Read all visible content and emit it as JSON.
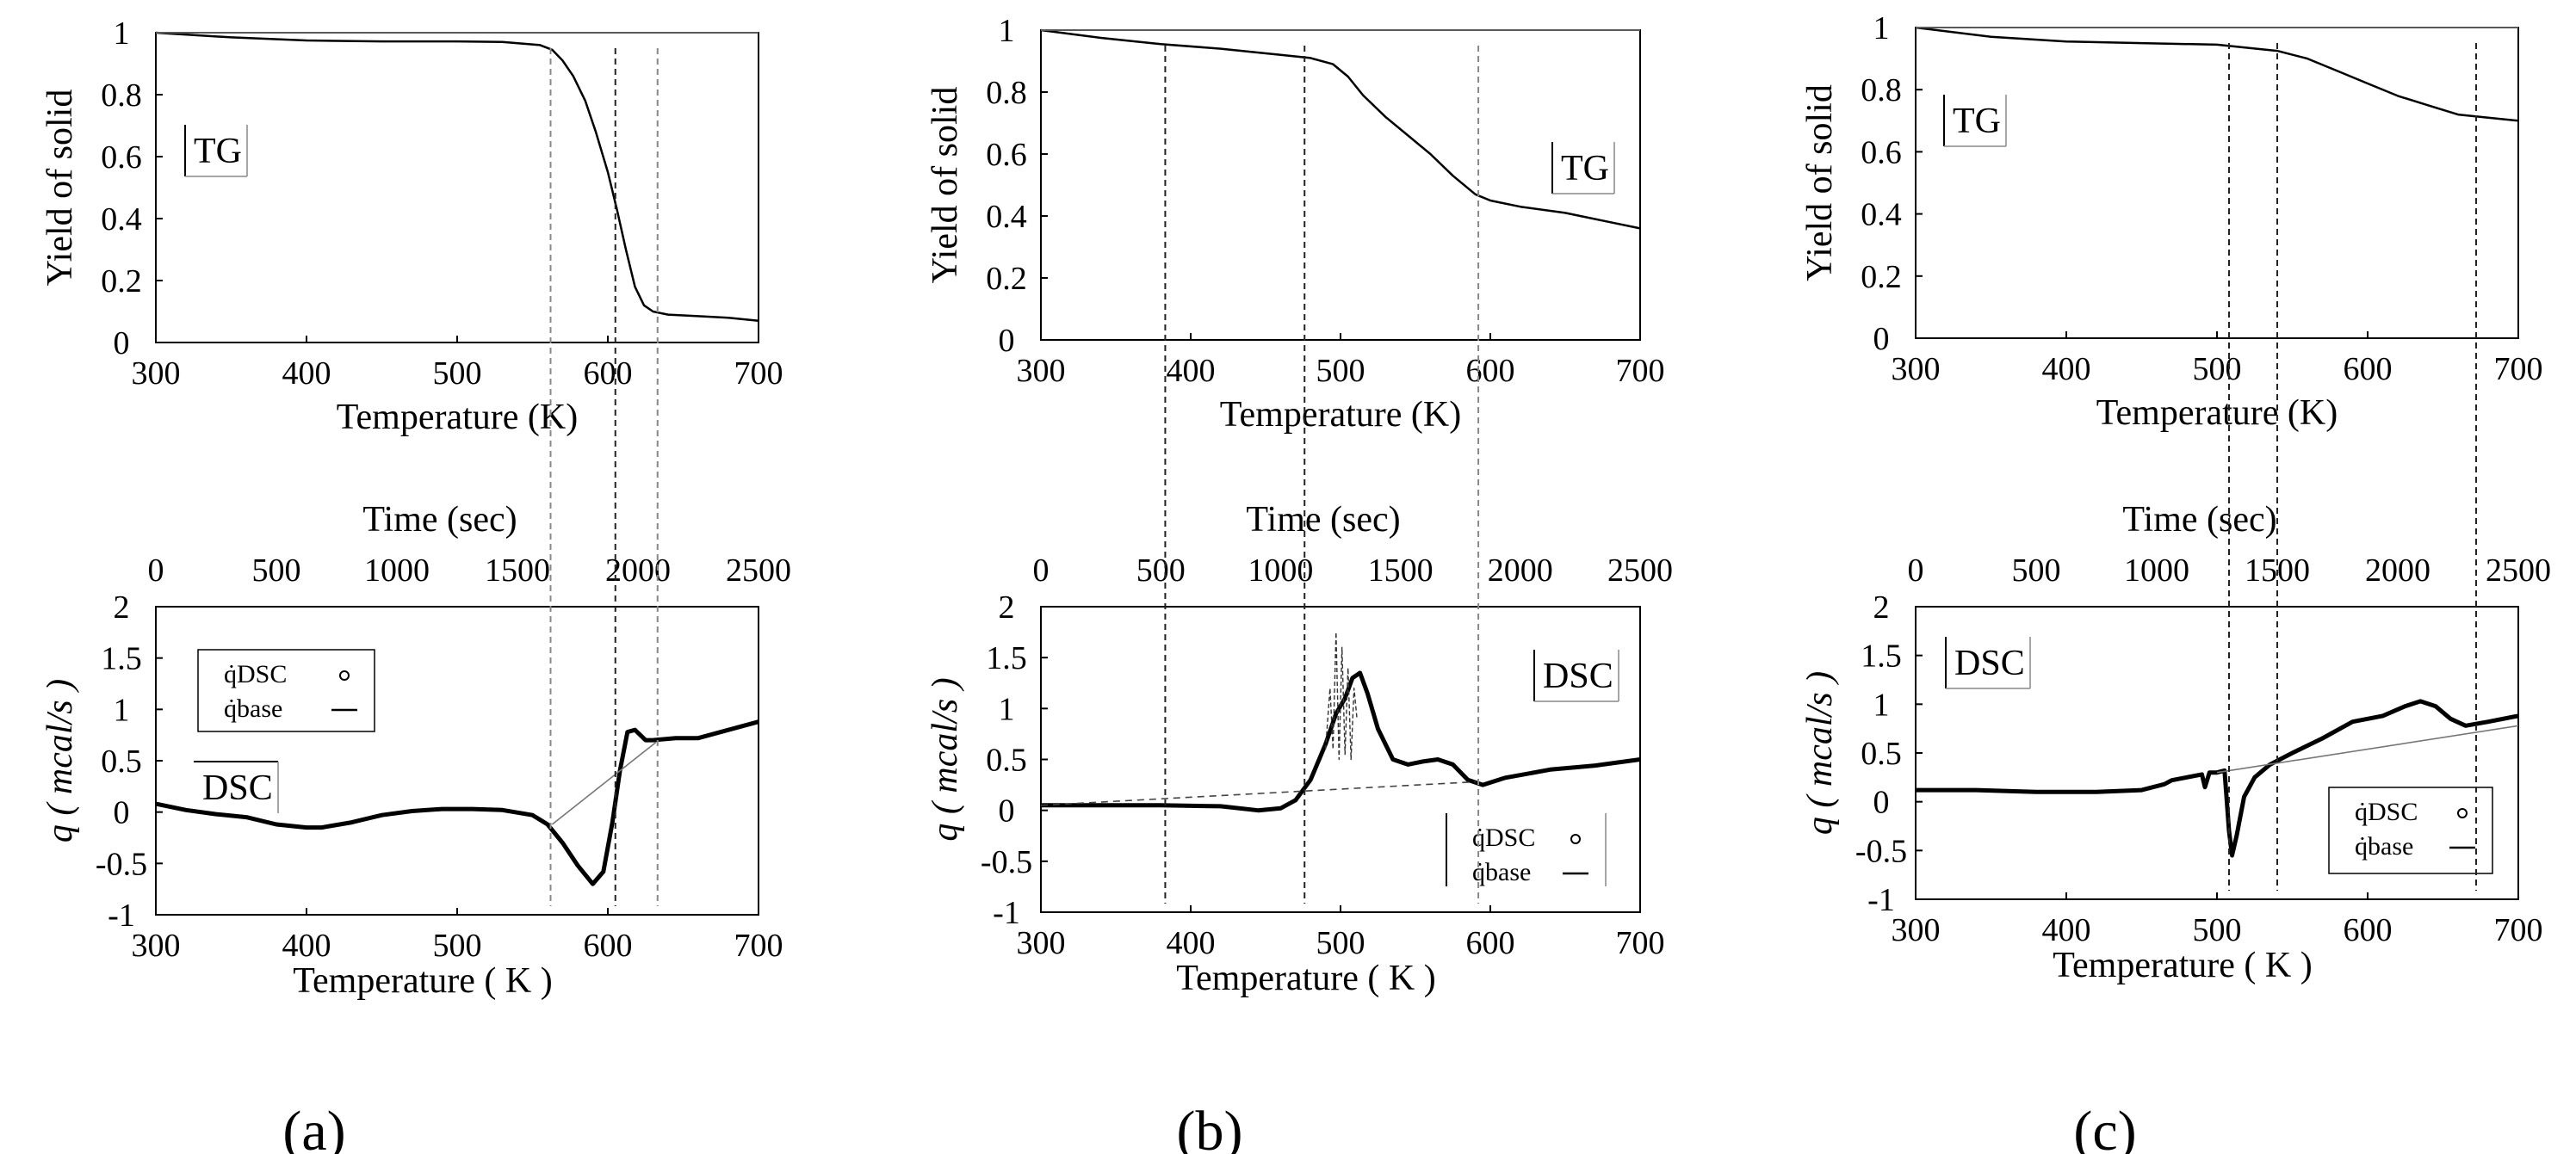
{
  "chart_data": [
    {
      "type": "line",
      "panel": "a",
      "tg": {
        "tag": "TG",
        "xlabel": "Temperature (K)",
        "ylabel": "Yield of solid",
        "xticks": [
          "300",
          "400",
          "500",
          "600",
          "700"
        ],
        "yticks": [
          "0",
          "0.2",
          "0.4",
          "0.6",
          "0.8",
          "1"
        ],
        "xlim": [
          300,
          700
        ],
        "ylim": [
          0,
          1
        ],
        "series": [
          {
            "name": "yield",
            "style": "solid",
            "x": [
              300,
              350,
              400,
              450,
              500,
              530,
              555,
              563,
              570,
              577,
              585,
              592,
              600,
              606,
              612,
              618,
              624,
              630,
              640,
              660,
              680,
              700
            ],
            "y": [
              1,
              0.985,
              0.975,
              0.972,
              0.972,
              0.97,
              0.96,
              0.945,
              0.91,
              0.86,
              0.78,
              0.68,
              0.55,
              0.43,
              0.3,
              0.18,
              0.12,
              0.1,
              0.09,
              0.085,
              0.08,
              0.07
            ]
          },
          {
            "name": "reference",
            "style": "thin",
            "x": [
              300,
              700
            ],
            "y": [
              1,
              1
            ]
          }
        ]
      },
      "dsc": {
        "tag": "DSC",
        "xlabel": "Temperature ( K )",
        "ylabel": "q ( mcal/s )",
        "x2label": "Time (sec)",
        "xticks": [
          "300",
          "400",
          "500",
          "600",
          "700"
        ],
        "x2ticks": [
          "0",
          "500",
          "1000",
          "1500",
          "2000",
          "2500"
        ],
        "yticks": [
          "-1",
          "-0.5",
          "0",
          "0.5",
          "1",
          "1.5",
          "2"
        ],
        "xlim": [
          300,
          700
        ],
        "x2lim": [
          0,
          2500
        ],
        "ylim": [
          -1,
          2
        ],
        "legend": [
          "q̇DSC",
          "q̇base"
        ],
        "series": [
          {
            "name": "q̇DSC",
            "style": "thick",
            "x": [
              300,
              320,
              340,
              360,
              380,
              400,
              410,
              430,
              450,
              470,
              490,
              510,
              530,
              550,
              560,
              570,
              580,
              590,
              597,
              603,
              608,
              613,
              618,
              625,
              630,
              645,
              660,
              680,
              700
            ],
            "y": [
              0.08,
              0.02,
              -0.02,
              -0.05,
              -0.12,
              -0.15,
              -0.15,
              -0.1,
              -0.03,
              0.01,
              0.03,
              0.03,
              0.02,
              -0.03,
              -0.12,
              -0.3,
              -0.52,
              -0.7,
              -0.58,
              -0.1,
              0.4,
              0.78,
              0.8,
              0.7,
              0.7,
              0.72,
              0.72,
              0.8,
              0.88
            ]
          },
          {
            "name": "q̇base",
            "style": "thin",
            "x": [
              563,
              632
            ],
            "y": [
              -0.12,
              0.68
            ]
          }
        ]
      },
      "markers": [
        {
          "x": 562,
          "style": "gray"
        },
        {
          "x": 605,
          "style": "black"
        },
        {
          "x": 633,
          "style": "gray"
        }
      ]
    },
    {
      "type": "line",
      "panel": "b",
      "tg": {
        "tag": "TG",
        "xlabel": "Temperature (K)",
        "ylabel": "Yield of solid",
        "xticks": [
          "300",
          "400",
          "500",
          "600",
          "700"
        ],
        "yticks": [
          "0",
          "0.2",
          "0.4",
          "0.6",
          "0.8",
          "1"
        ],
        "xlim": [
          300,
          700
        ],
        "ylim": [
          0,
          1
        ],
        "series": [
          {
            "name": "yield",
            "style": "solid",
            "x": [
              300,
              340,
              380,
              420,
              460,
              480,
              495,
              505,
              515,
              530,
              545,
              560,
              575,
              590,
              600,
              620,
              650,
              680,
              700
            ],
            "y": [
              1,
              0.975,
              0.955,
              0.94,
              0.92,
              0.91,
              0.89,
              0.85,
              0.79,
              0.72,
              0.66,
              0.6,
              0.53,
              0.47,
              0.45,
              0.43,
              0.41,
              0.38,
              0.36
            ]
          },
          {
            "name": "reference",
            "style": "thin",
            "x": [
              300,
              700
            ],
            "y": [
              1,
              1
            ]
          }
        ]
      },
      "dsc": {
        "tag": "DSC",
        "xlabel": "Temperature ( K )",
        "ylabel": "q ( mcal/s )",
        "x2label": "Time (sec)",
        "xticks": [
          "300",
          "400",
          "500",
          "600",
          "700"
        ],
        "x2ticks": [
          "0",
          "500",
          "1000",
          "1500",
          "2000",
          "2500"
        ],
        "yticks": [
          "-1",
          "-0.5",
          "0",
          "0.5",
          "1",
          "1.5",
          "2"
        ],
        "xlim": [
          300,
          700
        ],
        "x2lim": [
          0,
          2500
        ],
        "ylim": [
          -1,
          2
        ],
        "legend": [
          "q̇DSC",
          "q̇base"
        ],
        "series": [
          {
            "name": "q̇DSC",
            "style": "thick",
            "x": [
              300,
              340,
              380,
              420,
              445,
              460,
              470,
              480,
              490,
              497,
              503,
              508,
              513,
              518,
              525,
              535,
              545,
              555,
              565,
              575,
              585,
              595,
              610,
              640,
              670,
              700
            ],
            "y": [
              0.05,
              0.05,
              0.05,
              0.04,
              0.0,
              0.02,
              0.1,
              0.3,
              0.65,
              0.95,
              1.1,
              1.3,
              1.35,
              1.15,
              0.8,
              0.5,
              0.45,
              0.48,
              0.5,
              0.45,
              0.3,
              0.25,
              0.32,
              0.4,
              0.44,
              0.5
            ]
          },
          {
            "name": "q̇DSC-noise",
            "style": "dashed-thin",
            "x": [
              490,
              493,
              495,
              497,
              499,
              501,
              503,
              505,
              507,
              509,
              511
            ],
            "y": [
              0.6,
              1.2,
              0.6,
              1.75,
              0.5,
              1.6,
              0.55,
              1.4,
              0.5,
              1.2,
              0.9
            ]
          },
          {
            "name": "q̇base",
            "style": "thin-dashed",
            "x": [
              300,
              590
            ],
            "y": [
              0.05,
              0.28
            ]
          }
        ]
      },
      "markers": [
        {
          "x": 383,
          "style": "black"
        },
        {
          "x": 476,
          "style": "black"
        },
        {
          "x": 592,
          "style": "gray"
        }
      ]
    },
    {
      "type": "line",
      "panel": "c",
      "tg": {
        "tag": "TG",
        "xlabel": "Temperature (K)",
        "ylabel": "Yield of solid",
        "xticks": [
          "300",
          "400",
          "500",
          "600",
          "700"
        ],
        "yticks": [
          "0",
          "0.2",
          "0.4",
          "0.6",
          "0.8",
          "1"
        ],
        "xlim": [
          300,
          700
        ],
        "ylim": [
          0,
          1
        ],
        "series": [
          {
            "name": "yield",
            "style": "solid",
            "x": [
              300,
              350,
              400,
              450,
              500,
              520,
              540,
              560,
              580,
              600,
              620,
              640,
              660,
              680,
              700
            ],
            "y": [
              1,
              0.97,
              0.955,
              0.95,
              0.945,
              0.935,
              0.925,
              0.9,
              0.86,
              0.82,
              0.78,
              0.75,
              0.72,
              0.71,
              0.7
            ]
          },
          {
            "name": "reference",
            "style": "thin",
            "x": [
              300,
              700
            ],
            "y": [
              1,
              1
            ]
          }
        ]
      },
      "dsc": {
        "tag": "DSC",
        "xlabel": "Temperature ( K )",
        "ylabel": "q ( mcal/s )",
        "x2label": "Time (sec)",
        "xticks": [
          "300",
          "400",
          "500",
          "600",
          "700"
        ],
        "x2ticks": [
          "0",
          "500",
          "1000",
          "1500",
          "2000",
          "2500"
        ],
        "yticks": [
          "-1",
          "-0.5",
          "0",
          "0.5",
          "1",
          "1.5",
          "2"
        ],
        "xlim": [
          300,
          700
        ],
        "x2lim": [
          0,
          2500
        ],
        "ylim": [
          -1,
          2
        ],
        "legend": [
          "q̇DSC",
          "q̇base"
        ],
        "series": [
          {
            "name": "q̇DSC",
            "style": "thick",
            "x": [
              300,
              340,
              380,
              420,
              450,
              465,
              470,
              480,
              490,
              492,
              495,
              500,
              505,
              508,
              510,
              513,
              518,
              525,
              535,
              550,
              570,
              590,
              610,
              625,
              635,
              645,
              655,
              665,
              680,
              700
            ],
            "y": [
              0.12,
              0.12,
              0.1,
              0.1,
              0.12,
              0.18,
              0.22,
              0.25,
              0.28,
              0.15,
              0.3,
              0.3,
              0.32,
              -0.3,
              -0.55,
              -0.35,
              0.05,
              0.25,
              0.38,
              0.5,
              0.65,
              0.82,
              0.88,
              0.98,
              1.03,
              0.98,
              0.85,
              0.78,
              0.82,
              0.88
            ]
          },
          {
            "name": "q̇base",
            "style": "thin",
            "x": [
              500,
              700
            ],
            "y": [
              0.3,
              0.78
            ]
          }
        ]
      },
      "markers": [
        {
          "x": 508,
          "style": "black"
        },
        {
          "x": 540,
          "style": "black"
        },
        {
          "x": 672,
          "style": "black"
        }
      ]
    }
  ],
  "panel_labels": [
    "(a)",
    "(b)",
    "(c)"
  ]
}
